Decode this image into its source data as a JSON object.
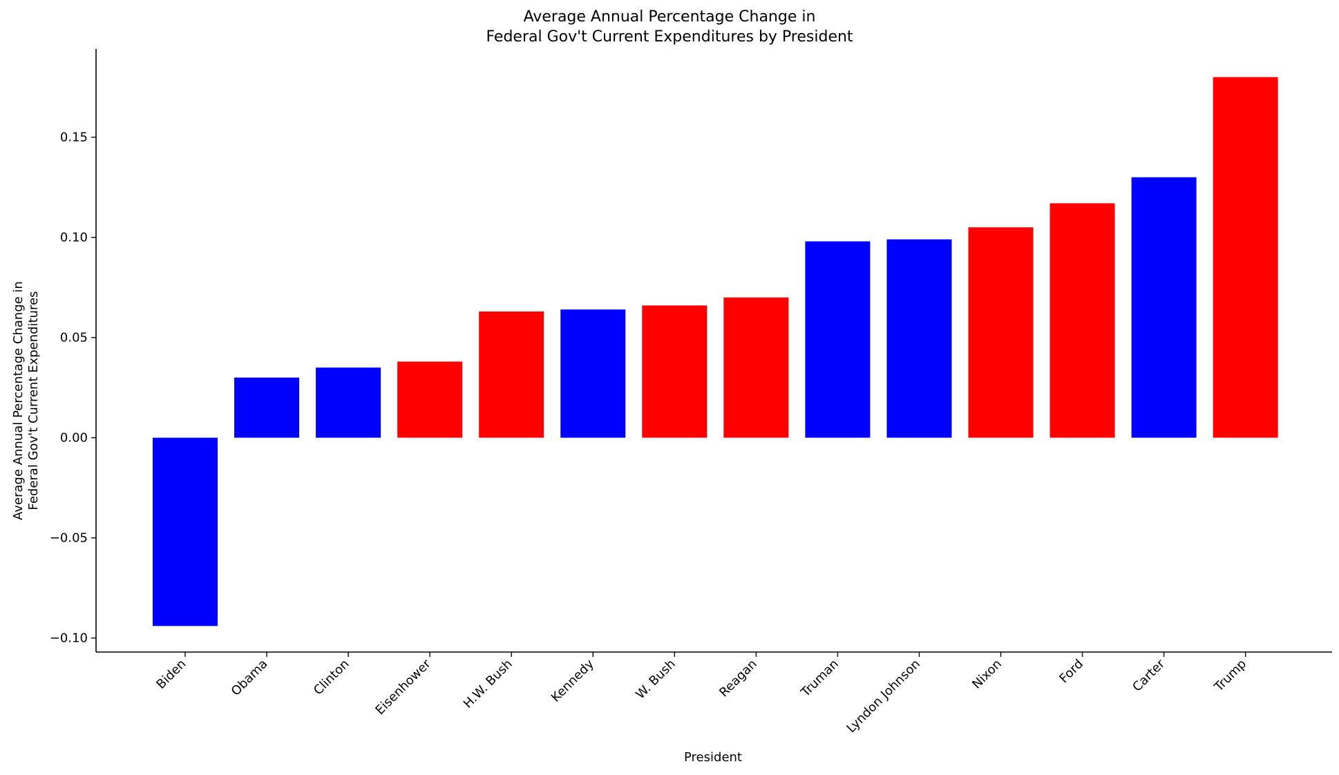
{
  "chart_data": {
    "type": "bar",
    "title_lines": [
      "Average Annual Percentage Change in",
      "Federal Gov't Current Expenditures by President"
    ],
    "xlabel": "President",
    "ylabel_lines": [
      "Average Annual Percentage Change in",
      "Federal Gov't Current Expenditures"
    ],
    "categories": [
      "Biden",
      "Obama",
      "Clinton",
      "Eisenhower",
      "H.W. Bush",
      "Kennedy",
      "W. Bush",
      "Reagan",
      "Truman",
      "Lyndon Johnson",
      "Nixon",
      "Ford",
      "Carter",
      "Trump"
    ],
    "values": [
      -0.094,
      0.03,
      0.035,
      0.038,
      0.063,
      0.064,
      0.066,
      0.07,
      0.098,
      0.099,
      0.105,
      0.117,
      0.13,
      0.18
    ],
    "bar_colors": [
      "#0000ff",
      "#0000ff",
      "#0000ff",
      "#ff0000",
      "#ff0000",
      "#0000ff",
      "#ff0000",
      "#ff0000",
      "#0000ff",
      "#0000ff",
      "#ff0000",
      "#ff0000",
      "#0000ff",
      "#ff0000"
    ],
    "yticks": [
      -0.1,
      -0.05,
      0.0,
      0.05,
      0.1,
      0.15
    ],
    "ytick_labels": [
      "−0.10",
      "−0.05",
      "0.00",
      "0.05",
      "0.10",
      "0.15"
    ],
    "ylim": [
      -0.107,
      0.194
    ],
    "grid": false
  }
}
